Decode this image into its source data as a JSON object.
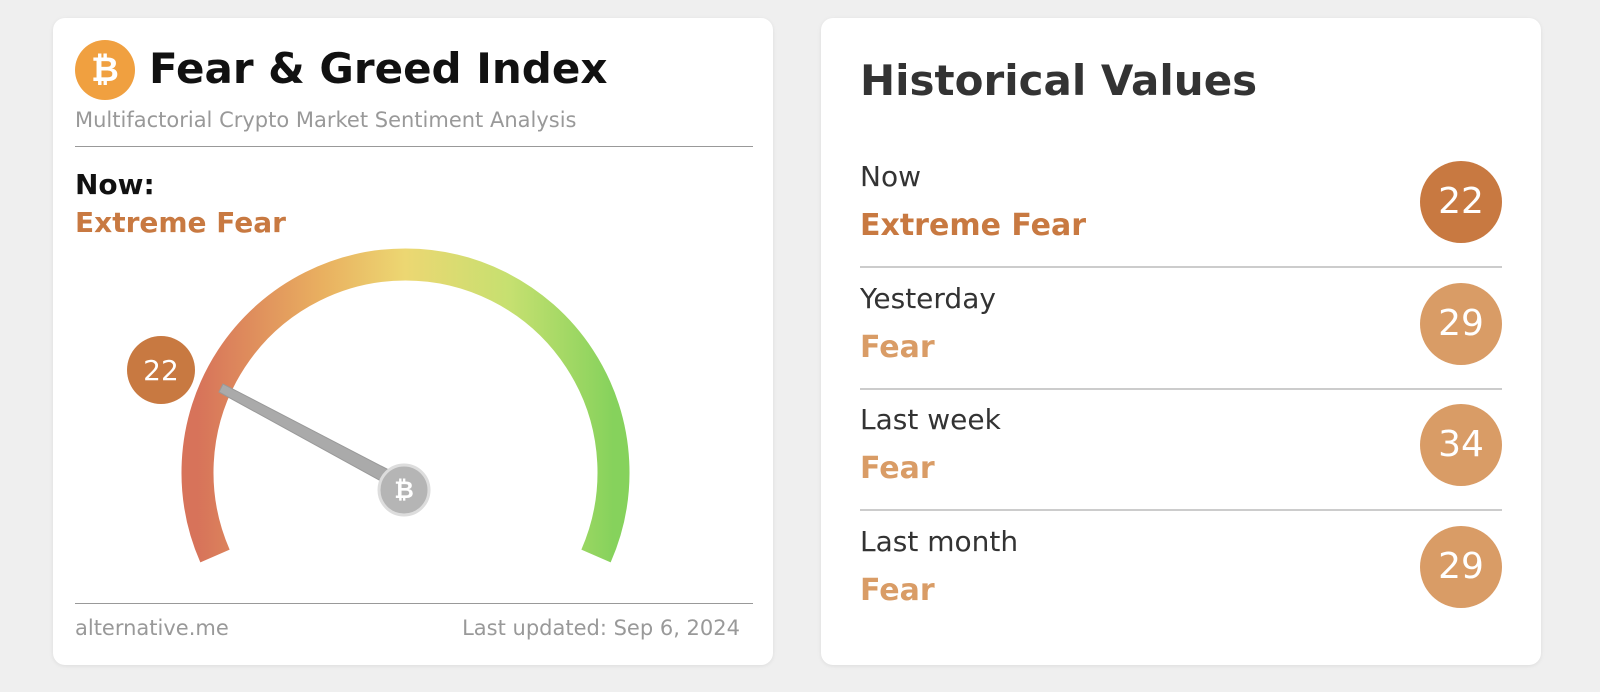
{
  "index_card": {
    "logo": "₿",
    "title": "Fear & Greed Index",
    "subtitle": "Multifactorial Crypto Market Sentiment Analysis",
    "now_label": "Now:",
    "now_classification": "Extreme Fear",
    "now_color": "#c87941",
    "value": 22,
    "source": "alternative.me",
    "updated": "Last updated: Sep 6, 2024"
  },
  "history_card": {
    "title": "Historical Values",
    "rows": [
      {
        "label": "Now",
        "classification": "Extreme Fear",
        "value": 22,
        "color": "#c87941"
      },
      {
        "label": "Yesterday",
        "classification": "Fear",
        "value": 29,
        "color": "#d99c66"
      },
      {
        "label": "Last week",
        "classification": "Fear",
        "value": 34,
        "color": "#d99c66"
      },
      {
        "label": "Last month",
        "classification": "Fear",
        "value": 29,
        "color": "#d99c66"
      }
    ]
  }
}
